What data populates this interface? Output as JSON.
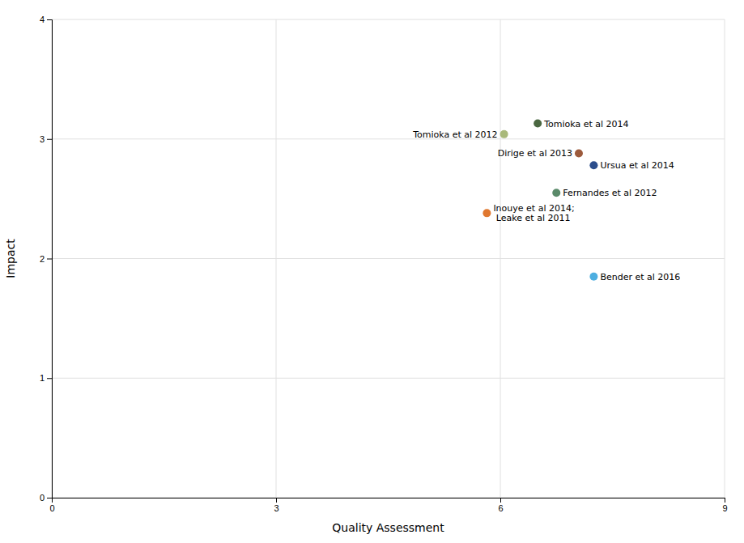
{
  "chart_data": {
    "type": "scatter",
    "xlabel": "Quality Assessment",
    "ylabel": "Impact",
    "x": [
      6.05,
      6.5,
      7.05,
      7.25,
      6.75,
      5.82,
      7.25
    ],
    "values": [
      3.04,
      3.13,
      2.88,
      2.78,
      2.55,
      2.38,
      1.85
    ],
    "colors": [
      "#a8b87a",
      "#4a6741",
      "#9c5a3c",
      "#2b4d8c",
      "#5a8a6a",
      "#e07830",
      "#4daee0"
    ],
    "annotations": [
      "Tomioka et al 2012",
      "Tomioka et al 2014",
      "Dirige et al 2013",
      "Ursua et al 2014",
      "Fernandes et al 2012",
      "Inouye et al 2014;\n Leake et al 2011",
      "Bender et al 2016"
    ],
    "xlim": [
      0,
      9
    ],
    "ylim": [
      0,
      4
    ],
    "xticks": [
      0,
      3,
      6,
      9
    ],
    "yticks": [
      0,
      1,
      2,
      3,
      4
    ],
    "grid": true
  }
}
